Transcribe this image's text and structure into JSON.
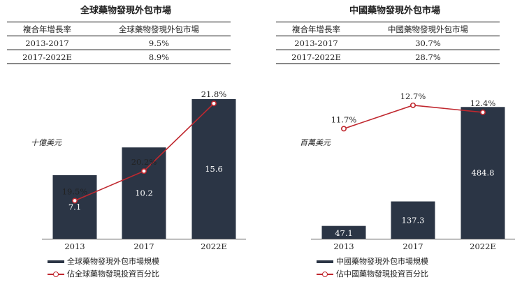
{
  "chart_data": [
    {
      "type": "bar",
      "title": "全球藥物發現外包市場",
      "unit_label": "十億美元",
      "categories": [
        "2013",
        "2017",
        "2022E"
      ],
      "values": [
        7.1,
        10.2,
        15.6
      ],
      "ylim": [
        0,
        17
      ],
      "value_labels": [
        "7.1",
        "10.2",
        "15.6"
      ],
      "line_series": {
        "name": "佔全球藥物發現投資百分比",
        "values": [
          19.5,
          20.2,
          21.8
        ],
        "labels": [
          "19.5%",
          "20.2%",
          "21.8%"
        ],
        "ylim": [
          18.6,
          22.2
        ]
      },
      "legend": [
        "全球藥物發現外包市場規模",
        "佔全球藥物發現投資百分比"
      ],
      "cagr_table": {
        "headers": [
          "複合年增長率",
          "全球藥物發現外包市場"
        ],
        "rows": [
          [
            "2013-2017",
            "9.5%"
          ],
          [
            "2017-2022E",
            "8.9%"
          ]
        ]
      }
    },
    {
      "type": "bar",
      "title": "中國藥物發現外包市場",
      "unit_label": "百萬美元",
      "categories": [
        "2013",
        "2017",
        "2022E"
      ],
      "values": [
        47.1,
        137.3,
        484.8
      ],
      "ylim": [
        0,
        560
      ],
      "value_labels": [
        "47.1",
        "137.3",
        "484.8"
      ],
      "line_series": {
        "name": "佔中國藥物發現投資百分比",
        "values": [
          11.7,
          12.7,
          12.4
        ],
        "labels": [
          "11.7%",
          "12.7%",
          "12.4%"
        ],
        "ylim": [
          7.0,
          13.5
        ]
      },
      "legend": [
        "中國藥物發現外包市場規模",
        "佔中國藥物發現投資百分比"
      ],
      "cagr_table": {
        "headers": [
          "複合年增長率",
          "中國藥物發現外包市場"
        ],
        "rows": [
          [
            "2013-2017",
            "30.7%"
          ],
          [
            "2017-2022E",
            "28.7%"
          ]
        ]
      }
    }
  ],
  "colors": {
    "bar": "#2b3545",
    "line": "#c0282f",
    "bar_label": "#ffffff",
    "axis": "#555555"
  }
}
